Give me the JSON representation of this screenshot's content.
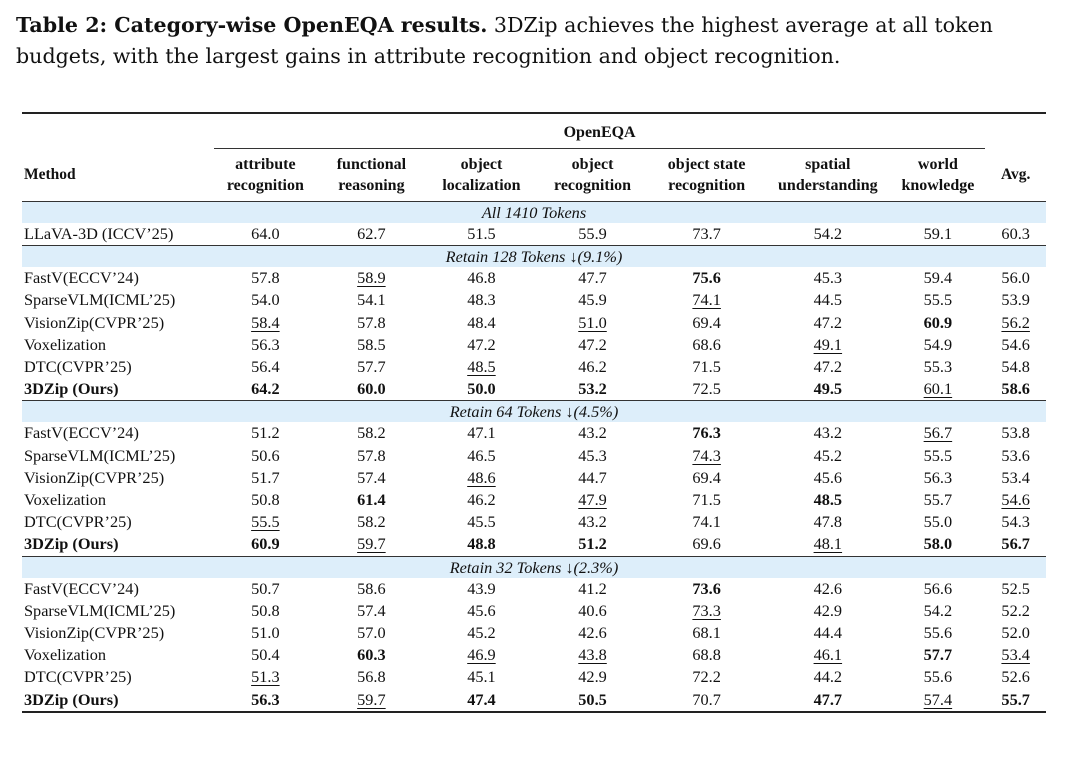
{
  "caption": {
    "label": "Table 2: Category-wise OpenEQA results.",
    "text": "3DZip achieves the highest average at all token budgets, with the largest gains in attribute recognition and object recognition."
  },
  "table": {
    "group_header": "OpenEQA",
    "method_header": "Method",
    "avg_header": "Avg.",
    "columns": [
      {
        "l1": "attribute",
        "l2": "recognition"
      },
      {
        "l1": "functional",
        "l2": "reasoning"
      },
      {
        "l1": "object",
        "l2": "localization"
      },
      {
        "l1": "object",
        "l2": "recognition"
      },
      {
        "l1": "object state",
        "l2": "recognition"
      },
      {
        "l1": "spatial",
        "l2": "understanding"
      },
      {
        "l1": "world",
        "l2": "knowledge"
      }
    ],
    "sections": [
      {
        "title": "All 1410 Tokens",
        "rows": [
          {
            "method": "LLaVA-3D (ICCV’25)",
            "values": [
              "64.0",
              "62.7",
              "51.5",
              "55.9",
              "73.7",
              "54.2",
              "59.1",
              "60.3"
            ],
            "bold": [],
            "underline": []
          }
        ]
      },
      {
        "title": "Retain 128 Tokens ↓(9.1%)",
        "rows": [
          {
            "method": "FastV(ECCV’24)",
            "values": [
              "57.8",
              "58.9",
              "46.8",
              "47.7",
              "75.6",
              "45.3",
              "59.4",
              "56.0"
            ],
            "bold": [
              4
            ],
            "underline": [
              1
            ]
          },
          {
            "method": "SparseVLM(ICML’25)",
            "values": [
              "54.0",
              "54.1",
              "48.3",
              "45.9",
              "74.1",
              "44.5",
              "55.5",
              "53.9"
            ],
            "bold": [],
            "underline": [
              4
            ]
          },
          {
            "method": "VisionZip(CVPR’25)",
            "values": [
              "58.4",
              "57.8",
              "48.4",
              "51.0",
              "69.4",
              "47.2",
              "60.9",
              "56.2"
            ],
            "bold": [
              6
            ],
            "underline": [
              0,
              3,
              7
            ]
          },
          {
            "method": "Voxelization",
            "values": [
              "56.3",
              "58.5",
              "47.2",
              "47.2",
              "68.6",
              "49.1",
              "54.9",
              "54.6"
            ],
            "bold": [],
            "underline": [
              5
            ]
          },
          {
            "method": "DTC(CVPR’25)",
            "values": [
              "56.4",
              "57.7",
              "48.5",
              "46.2",
              "71.5",
              "47.2",
              "55.3",
              "54.8"
            ],
            "bold": [],
            "underline": [
              2
            ]
          },
          {
            "method": "3DZip (Ours)",
            "ours": true,
            "values": [
              "64.2",
              "60.0",
              "50.0",
              "53.2",
              "72.5",
              "49.5",
              "60.1",
              "58.6"
            ],
            "bold": [
              0,
              1,
              2,
              3,
              5,
              7
            ],
            "underline": [
              6
            ]
          }
        ]
      },
      {
        "title": "Retain 64 Tokens ↓(4.5%)",
        "rows": [
          {
            "method": "FastV(ECCV’24)",
            "values": [
              "51.2",
              "58.2",
              "47.1",
              "43.2",
              "76.3",
              "43.2",
              "56.7",
              "53.8"
            ],
            "bold": [
              4
            ],
            "underline": [
              6
            ]
          },
          {
            "method": "SparseVLM(ICML’25)",
            "values": [
              "50.6",
              "57.8",
              "46.5",
              "45.3",
              "74.3",
              "45.2",
              "55.5",
              "53.6"
            ],
            "bold": [],
            "underline": [
              4
            ]
          },
          {
            "method": "VisionZip(CVPR’25)",
            "values": [
              "51.7",
              "57.4",
              "48.6",
              "44.7",
              "69.4",
              "45.6",
              "56.3",
              "53.4"
            ],
            "bold": [],
            "underline": [
              2
            ]
          },
          {
            "method": "Voxelization",
            "values": [
              "50.8",
              "61.4",
              "46.2",
              "47.9",
              "71.5",
              "48.5",
              "55.7",
              "54.6"
            ],
            "bold": [
              1,
              5
            ],
            "underline": [
              3,
              7
            ]
          },
          {
            "method": "DTC(CVPR’25)",
            "values": [
              "55.5",
              "58.2",
              "45.5",
              "43.2",
              "74.1",
              "47.8",
              "55.0",
              "54.3"
            ],
            "bold": [],
            "underline": [
              0
            ]
          },
          {
            "method": "3DZip (Ours)",
            "ours": true,
            "values": [
              "60.9",
              "59.7",
              "48.8",
              "51.2",
              "69.6",
              "48.1",
              "58.0",
              "56.7"
            ],
            "bold": [
              0,
              2,
              3,
              6,
              7
            ],
            "underline": [
              1,
              5
            ]
          }
        ]
      },
      {
        "title": "Retain 32 Tokens ↓(2.3%)",
        "rows": [
          {
            "method": "FastV(ECCV’24)",
            "values": [
              "50.7",
              "58.6",
              "43.9",
              "41.2",
              "73.6",
              "42.6",
              "56.6",
              "52.5"
            ],
            "bold": [
              4
            ],
            "underline": []
          },
          {
            "method": "SparseVLM(ICML’25)",
            "values": [
              "50.8",
              "57.4",
              "45.6",
              "40.6",
              "73.3",
              "42.9",
              "54.2",
              "52.2"
            ],
            "bold": [],
            "underline": [
              4
            ]
          },
          {
            "method": "VisionZip(CVPR’25)",
            "values": [
              "51.0",
              "57.0",
              "45.2",
              "42.6",
              "68.1",
              "44.4",
              "55.6",
              "52.0"
            ],
            "bold": [],
            "underline": []
          },
          {
            "method": "Voxelization",
            "values": [
              "50.4",
              "60.3",
              "46.9",
              "43.8",
              "68.8",
              "46.1",
              "57.7",
              "53.4"
            ],
            "bold": [
              1,
              6
            ],
            "underline": [
              2,
              3,
              5,
              7
            ]
          },
          {
            "method": "DTC(CVPR’25)",
            "values": [
              "51.3",
              "56.8",
              "45.1",
              "42.9",
              "72.2",
              "44.2",
              "55.6",
              "52.6"
            ],
            "bold": [],
            "underline": [
              0
            ]
          },
          {
            "method": "3DZip (Ours)",
            "ours": true,
            "values": [
              "56.3",
              "59.7",
              "47.4",
              "50.5",
              "70.7",
              "47.7",
              "57.4",
              "55.7"
            ],
            "bold": [
              0,
              2,
              3,
              5,
              7
            ],
            "underline": [
              1,
              6
            ]
          }
        ]
      }
    ]
  }
}
